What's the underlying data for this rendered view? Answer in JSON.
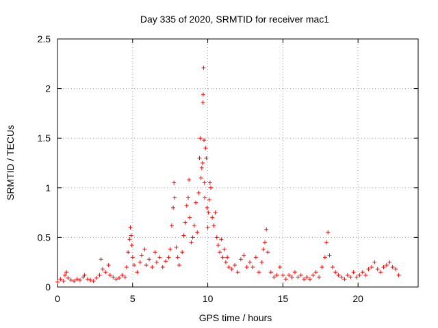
{
  "chart_data": {
    "type": "scatter",
    "title": "Day 335 of 2020, SRMTID for receiver mac1",
    "xlabel": "GPS time / hours",
    "ylabel": "SRMTID / TECUs",
    "xlim": [
      0,
      24
    ],
    "ylim": [
      0,
      2.5
    ],
    "xticks": [
      0,
      5,
      10,
      15,
      20
    ],
    "xtick_labels": [
      "0",
      "5",
      "10",
      "15",
      "20"
    ],
    "yticks": [
      0,
      0.5,
      1,
      1.5,
      2,
      2.5
    ],
    "ytick_labels": [
      "0",
      "0.5",
      "1",
      "1.5",
      "2",
      "2.5"
    ],
    "grid": true,
    "marker": "+",
    "color": "#ff0000",
    "series": [
      {
        "name": "mac1",
        "points": [
          [
            0.0,
            0.05
          ],
          [
            0.2,
            0.08
          ],
          [
            0.4,
            0.06
          ],
          [
            0.5,
            0.12
          ],
          [
            0.6,
            0.15
          ],
          [
            0.7,
            0.09
          ],
          [
            0.9,
            0.07
          ],
          [
            1.1,
            0.06
          ],
          [
            1.3,
            0.08
          ],
          [
            1.5,
            0.07
          ],
          [
            1.7,
            0.1
          ],
          [
            1.8,
            0.12
          ],
          [
            2.0,
            0.08
          ],
          [
            2.2,
            0.07
          ],
          [
            2.4,
            0.06
          ],
          [
            2.6,
            0.09
          ],
          [
            2.8,
            0.12
          ],
          [
            2.9,
            0.28
          ],
          [
            3.0,
            0.18
          ],
          [
            3.2,
            0.15
          ],
          [
            3.4,
            0.22
          ],
          [
            3.5,
            0.12
          ],
          [
            3.7,
            0.1
          ],
          [
            3.9,
            0.08
          ],
          [
            4.1,
            0.09
          ],
          [
            4.3,
            0.12
          ],
          [
            4.5,
            0.1
          ],
          [
            4.6,
            0.2
          ],
          [
            4.7,
            0.35
          ],
          [
            4.8,
            0.48
          ],
          [
            4.85,
            0.6
          ],
          [
            4.9,
            0.52
          ],
          [
            4.95,
            0.42
          ],
          [
            5.0,
            0.3
          ],
          [
            5.1,
            0.22
          ],
          [
            5.3,
            0.15
          ],
          [
            5.5,
            0.25
          ],
          [
            5.6,
            0.32
          ],
          [
            5.8,
            0.38
          ],
          [
            5.9,
            0.22
          ],
          [
            6.1,
            0.28
          ],
          [
            6.3,
            0.2
          ],
          [
            6.5,
            0.35
          ],
          [
            6.6,
            0.25
          ],
          [
            6.8,
            0.3
          ],
          [
            7.0,
            0.2
          ],
          [
            7.2,
            0.26
          ],
          [
            7.4,
            0.3
          ],
          [
            7.5,
            0.38
          ],
          [
            7.6,
            0.62
          ],
          [
            7.7,
            0.8
          ],
          [
            7.75,
            1.05
          ],
          [
            7.8,
            0.9
          ],
          [
            7.9,
            0.4
          ],
          [
            8.0,
            0.3
          ],
          [
            8.1,
            0.22
          ],
          [
            8.3,
            0.35
          ],
          [
            8.4,
            0.52
          ],
          [
            8.5,
            0.65
          ],
          [
            8.6,
            0.82
          ],
          [
            8.7,
            0.9
          ],
          [
            8.75,
            1.08
          ],
          [
            8.8,
            0.7
          ],
          [
            8.9,
            0.45
          ],
          [
            9.0,
            0.5
          ],
          [
            9.1,
            0.62
          ],
          [
            9.2,
            0.85
          ],
          [
            9.3,
            0.55
          ],
          [
            9.4,
            0.95
          ],
          [
            9.45,
            1.3
          ],
          [
            9.5,
            1.5
          ],
          [
            9.55,
            1.1
          ],
          [
            9.6,
            1.2
          ],
          [
            9.65,
            1.25
          ],
          [
            9.68,
            1.86
          ],
          [
            9.7,
            1.94
          ],
          [
            9.72,
            2.21
          ],
          [
            9.75,
            1.48
          ],
          [
            9.78,
            1.05
          ],
          [
            9.8,
            0.9
          ],
          [
            9.85,
            1.4
          ],
          [
            9.9,
            1.3
          ],
          [
            9.95,
            0.8
          ],
          [
            10.0,
            0.6
          ],
          [
            10.05,
            0.75
          ],
          [
            10.1,
            0.88
          ],
          [
            10.15,
            1.05
          ],
          [
            10.2,
            1.0
          ],
          [
            10.3,
            0.7
          ],
          [
            10.4,
            0.62
          ],
          [
            10.5,
            0.75
          ],
          [
            10.6,
            0.5
          ],
          [
            10.7,
            0.42
          ],
          [
            10.8,
            0.35
          ],
          [
            10.9,
            0.48
          ],
          [
            11.0,
            0.3
          ],
          [
            11.1,
            0.38
          ],
          [
            11.2,
            0.25
          ],
          [
            11.3,
            0.3
          ],
          [
            11.4,
            0.2
          ],
          [
            11.6,
            0.18
          ],
          [
            11.8,
            0.22
          ],
          [
            12.0,
            0.15
          ],
          [
            12.2,
            0.28
          ],
          [
            12.4,
            0.32
          ],
          [
            12.6,
            0.2
          ],
          [
            12.8,
            0.25
          ],
          [
            13.0,
            0.2
          ],
          [
            13.2,
            0.3
          ],
          [
            13.4,
            0.15
          ],
          [
            13.6,
            0.25
          ],
          [
            13.7,
            0.38
          ],
          [
            13.8,
            0.45
          ],
          [
            13.9,
            0.58
          ],
          [
            14.0,
            0.35
          ],
          [
            14.2,
            0.15
          ],
          [
            14.4,
            0.1
          ],
          [
            14.6,
            0.12
          ],
          [
            14.8,
            0.2
          ],
          [
            15.0,
            0.12
          ],
          [
            15.2,
            0.08
          ],
          [
            15.4,
            0.12
          ],
          [
            15.6,
            0.1
          ],
          [
            15.8,
            0.15
          ],
          [
            16.0,
            0.1
          ],
          [
            16.2,
            0.12
          ],
          [
            16.4,
            0.08
          ],
          [
            16.6,
            0.1
          ],
          [
            16.8,
            0.08
          ],
          [
            17.0,
            0.12
          ],
          [
            17.2,
            0.15
          ],
          [
            17.4,
            0.1
          ],
          [
            17.6,
            0.2
          ],
          [
            17.8,
            0.3
          ],
          [
            17.9,
            0.45
          ],
          [
            18.0,
            0.55
          ],
          [
            18.1,
            0.32
          ],
          [
            18.3,
            0.2
          ],
          [
            18.5,
            0.15
          ],
          [
            18.7,
            0.12
          ],
          [
            18.9,
            0.1
          ],
          [
            19.1,
            0.08
          ],
          [
            19.3,
            0.12
          ],
          [
            19.5,
            0.1
          ],
          [
            19.7,
            0.15
          ],
          [
            19.9,
            0.1
          ],
          [
            20.1,
            0.12
          ],
          [
            20.3,
            0.15
          ],
          [
            20.5,
            0.12
          ],
          [
            20.7,
            0.18
          ],
          [
            20.9,
            0.2
          ],
          [
            21.1,
            0.25
          ],
          [
            21.3,
            0.18
          ],
          [
            21.5,
            0.15
          ],
          [
            21.7,
            0.2
          ],
          [
            21.9,
            0.22
          ],
          [
            22.1,
            0.25
          ],
          [
            22.3,
            0.2
          ],
          [
            22.5,
            0.18
          ],
          [
            22.7,
            0.12
          ]
        ]
      }
    ]
  }
}
